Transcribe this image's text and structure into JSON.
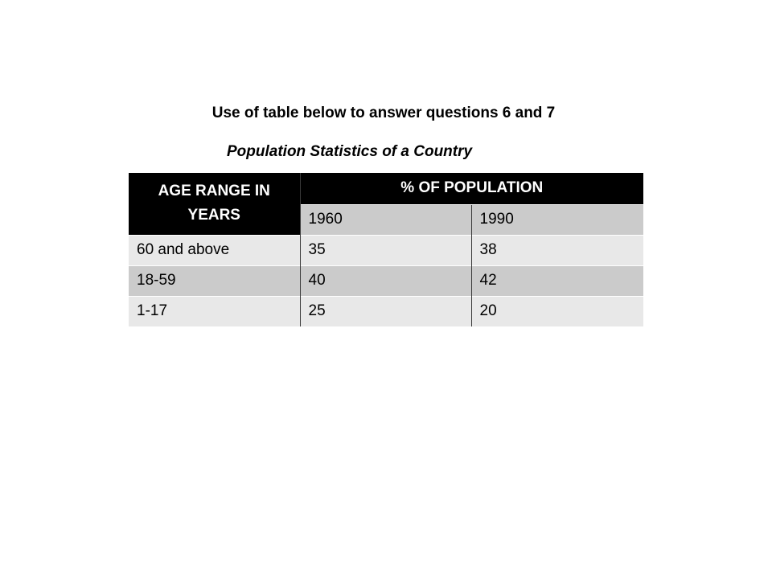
{
  "instruction": "Use of table below to answer questions 6 and 7",
  "table_title": "Population Statistics of a Country",
  "table": {
    "header_age": "AGE RANGE IN YEARS",
    "header_percent": "% OF POPULATION",
    "years": [
      "1960",
      "1990"
    ],
    "rows": [
      {
        "age": "60 and above",
        "v1960": "35",
        "v1990": "38"
      },
      {
        "age": "18-59",
        "v1960": "40",
        "v1990": "42"
      },
      {
        "age": "1-17",
        "v1960": "25",
        "v1990": "20"
      }
    ]
  },
  "colors": {
    "header_bg": "#000000",
    "header_text": "#ffffff",
    "row_dark": "#cbcbcb",
    "row_light": "#e8e8e8"
  }
}
